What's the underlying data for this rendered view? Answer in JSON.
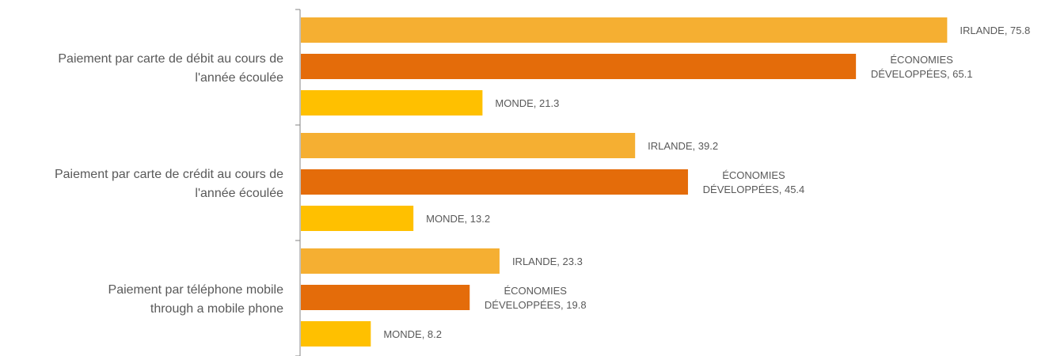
{
  "chart_data": {
    "type": "bar",
    "orientation": "horizontal",
    "title": "",
    "xlabel": "",
    "ylabel": "",
    "xlim": [
      0,
      80
    ],
    "grid": false,
    "legend": "none",
    "categories": [
      [
        "Paiement par carte de débit au cours de",
        "l'année écoulée"
      ],
      [
        "Paiement par carte de crédit au cours de",
        "l'année écoulée"
      ],
      [
        "Paiement par téléphone mobile",
        "through a mobile phone"
      ]
    ],
    "series": [
      {
        "name": "IRLANDE",
        "label_lines": [
          "IRLANDE, "
        ],
        "color": "#F5AF32",
        "values": [
          75.8,
          39.2,
          23.3
        ]
      },
      {
        "name": "ÉCONOMIES DÉVELOPPÉES",
        "label_lines": [
          "ÉCONOMIES",
          "DÉVELOPPÉES, "
        ],
        "color": "#E46C0A",
        "values": [
          65.1,
          45.4,
          19.8
        ]
      },
      {
        "name": "MONDE",
        "label_lines": [
          "MONDE, "
        ],
        "color": "#FFC000",
        "values": [
          21.3,
          13.2,
          8.2
        ]
      }
    ]
  }
}
